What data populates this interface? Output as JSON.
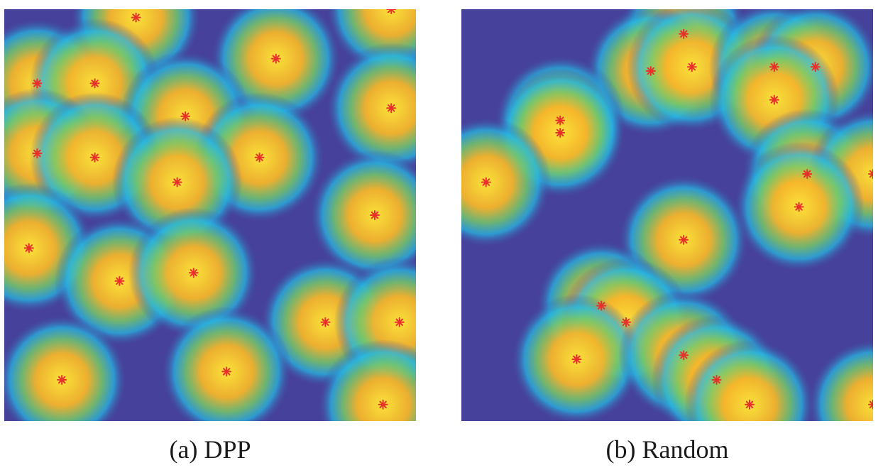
{
  "panels": [
    {
      "caption": "(a) DPP",
      "points": [
        [
          0.32,
          0.98
        ],
        [
          0.94,
          1.0
        ],
        [
          0.66,
          0.88
        ],
        [
          0.08,
          0.82
        ],
        [
          0.22,
          0.82
        ],
        [
          0.44,
          0.74
        ],
        [
          0.94,
          0.76
        ],
        [
          0.08,
          0.65
        ],
        [
          0.22,
          0.64
        ],
        [
          0.62,
          0.64
        ],
        [
          0.42,
          0.58
        ],
        [
          0.9,
          0.5
        ],
        [
          0.06,
          0.42
        ],
        [
          0.28,
          0.34
        ],
        [
          0.46,
          0.36
        ],
        [
          0.78,
          0.24
        ],
        [
          0.96,
          0.24
        ],
        [
          0.14,
          0.1
        ],
        [
          0.54,
          0.12
        ],
        [
          0.92,
          0.04
        ]
      ]
    },
    {
      "caption": "(b) Random",
      "points": [
        [
          0.54,
          0.94
        ],
        [
          0.46,
          0.85
        ],
        [
          0.56,
          0.86
        ],
        [
          0.76,
          0.86
        ],
        [
          0.86,
          0.86
        ],
        [
          0.76,
          0.78
        ],
        [
          0.24,
          0.73
        ],
        [
          0.24,
          0.7
        ],
        [
          0.06,
          0.58
        ],
        [
          0.84,
          0.6
        ],
        [
          1.0,
          0.6
        ],
        [
          0.82,
          0.52
        ],
        [
          0.54,
          0.44
        ],
        [
          0.34,
          0.28
        ],
        [
          0.4,
          0.24
        ],
        [
          0.28,
          0.15
        ],
        [
          0.54,
          0.16
        ],
        [
          0.62,
          0.1
        ],
        [
          0.7,
          0.04
        ],
        [
          1.0,
          0.04
        ]
      ]
    }
  ],
  "colors": {
    "background": "#46419a",
    "field_stops": [
      "#46419a",
      "#26b7e3",
      "#76c86a",
      "#f5b52a",
      "#fbe23a"
    ],
    "marker": "#e8312b"
  }
}
